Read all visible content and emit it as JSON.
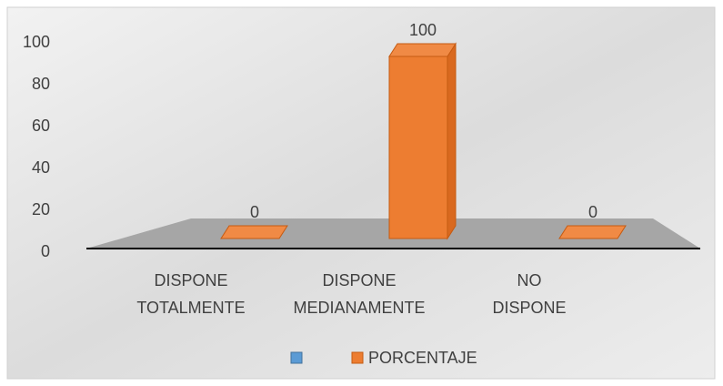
{
  "chart_data": {
    "type": "bar3d",
    "categories": [
      "DISPONE TOTALMENTE",
      "DISPONE MEDIANAMENTE",
      "NO DISPONE"
    ],
    "series": [
      {
        "name": "PORCENTAJE",
        "color": "#ed7d31",
        "values": [
          0,
          100,
          0
        ]
      }
    ],
    "ylim": [
      0,
      100
    ],
    "yticks": [
      0,
      20,
      40,
      60,
      80,
      100
    ],
    "grid": false,
    "legend": "bottom"
  }
}
